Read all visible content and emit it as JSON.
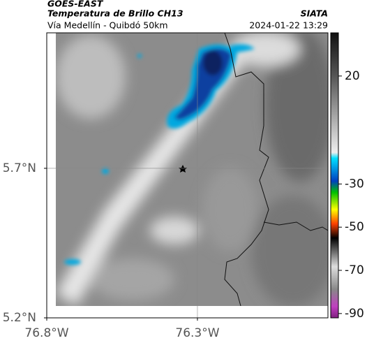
{
  "header": {
    "satellite": "GOES-EAST",
    "product": "Temperatura de Brillo CH13",
    "region": "Vía Medellín - Quibdó 50km",
    "source": "SIATA",
    "datetime": "2024-01-22 13:29"
  },
  "map": {
    "xlim": [
      -76.8,
      -75.867
    ],
    "ylim": [
      5.2,
      6.153
    ],
    "xticks": [
      {
        "value": -76.8,
        "label": "76.8°W"
      },
      {
        "value": -76.3,
        "label": "76.3°W"
      }
    ],
    "yticks": [
      {
        "value": 5.2,
        "label": "5.2°N"
      },
      {
        "value": 5.7,
        "label": "5.7°N"
      }
    ],
    "grid": true
  },
  "colorbar": {
    "lim": [
      -92,
      40
    ],
    "ticks": [
      20,
      -30,
      -50,
      -70,
      -90
    ]
  }
}
